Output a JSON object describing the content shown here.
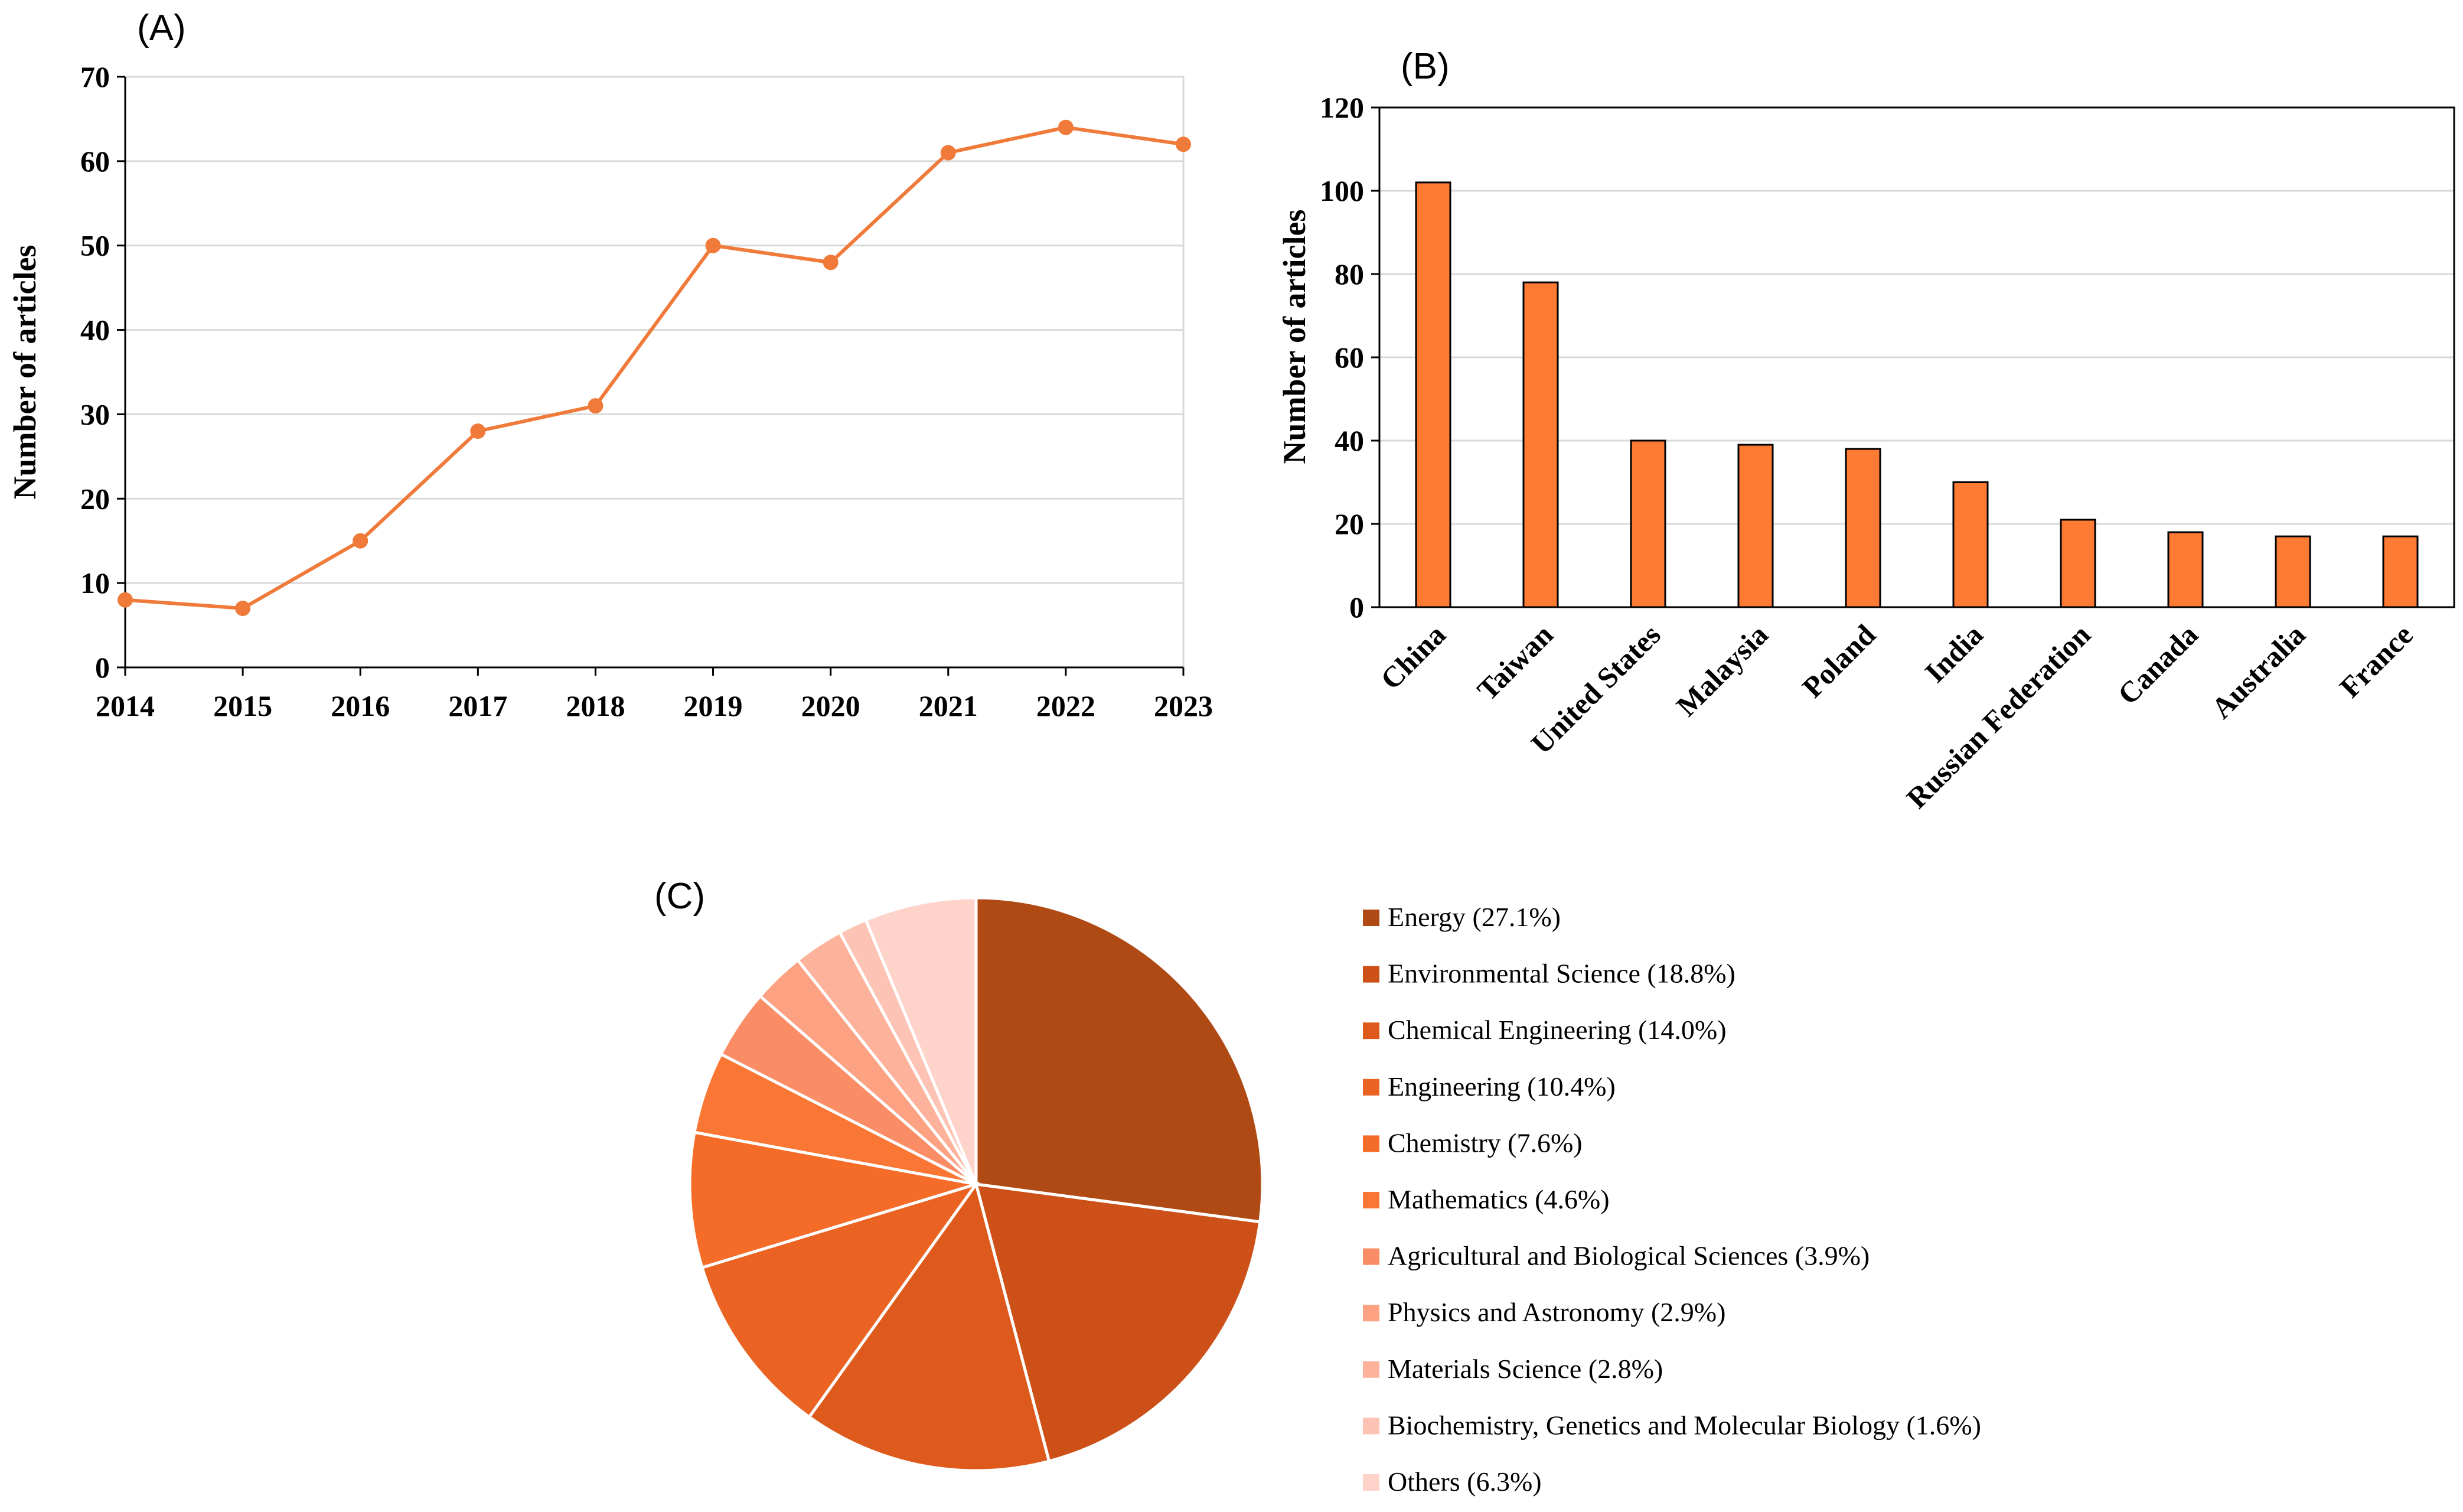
{
  "chart_data": [
    {
      "panel": "(A)",
      "type": "line",
      "x": [
        2014,
        2015,
        2016,
        2017,
        2018,
        2019,
        2020,
        2021,
        2022,
        2023
      ],
      "x_tick_labels": [
        "2014",
        "2015",
        "2016",
        "2017",
        "2018",
        "2019",
        "2020",
        "2021",
        "2022",
        "2023"
      ],
      "values": [
        8,
        7,
        15,
        28,
        31,
        50,
        48,
        61,
        64,
        62
      ],
      "ylabel": "Number of articles",
      "ylim": [
        0,
        70
      ],
      "y_ticks": [
        0,
        10,
        20,
        30,
        40,
        50,
        60,
        70
      ],
      "grid": true,
      "color": "#F07A3A"
    },
    {
      "panel": "(B)",
      "type": "bar",
      "categories": [
        "China",
        "Taiwan",
        "United States",
        "Malaysia",
        "Poland",
        "India",
        "Russian Federation",
        "Canada",
        "Australia",
        "France"
      ],
      "values": [
        102,
        78,
        40,
        39,
        38,
        30,
        21,
        18,
        17,
        17
      ],
      "ylabel": "Number of articles",
      "ylim": [
        0,
        120
      ],
      "y_ticks": [
        0,
        20,
        40,
        60,
        80,
        100,
        120
      ],
      "grid": true,
      "color": "#FF7A33"
    },
    {
      "panel": "(C)",
      "type": "pie",
      "slices": [
        {
          "label": "Energy (27.1%)",
          "value": 27.1,
          "color": "#B04A15"
        },
        {
          "label": "Environmental Science (18.8%)",
          "value": 18.8,
          "color": "#CC5017"
        },
        {
          "label": "Chemical Engineering (14.0%)",
          "value": 14.0,
          "color": "#DE5A1C"
        },
        {
          "label": "Engineering (10.4%)",
          "value": 10.4,
          "color": "#EA6322"
        },
        {
          "label": "Chemistry (7.6%)",
          "value": 7.6,
          "color": "#F56C28"
        },
        {
          "label": "Mathematics (4.6%)",
          "value": 4.6,
          "color": "#FA7634"
        },
        {
          "label": "Agricultural and Biological Sciences (3.9%)",
          "value": 3.9,
          "color": "#FA8D66"
        },
        {
          "label": "Physics and Astronomy (2.9%)",
          "value": 2.9,
          "color": "#FCA283"
        },
        {
          "label": "Materials Science (2.8%)",
          "value": 2.8,
          "color": "#FDB29B"
        },
        {
          "label": "Biochemistry, Genetics and Molecular Biology (1.6%)",
          "value": 1.6,
          "color": "#FDC3B4"
        },
        {
          "label": "Others (6.3%)",
          "value": 6.3,
          "color": "#FED3CA"
        }
      ],
      "legend_position": "right"
    }
  ]
}
